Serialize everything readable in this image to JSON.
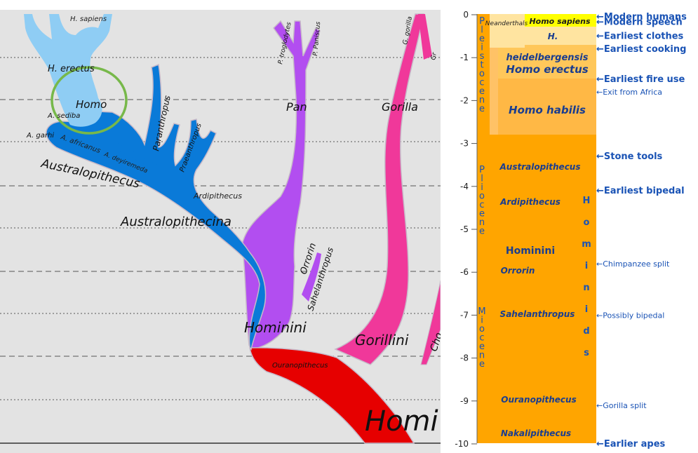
{
  "tree": {
    "colors": {
      "background": "#e3e3e3",
      "hominina": "#0a7ad8",
      "homo": "#8fcdf4",
      "pan": "#b24ef0",
      "gorilla": "#f0389a",
      "hominini_base": "#e60000",
      "highlight_circle": "#77b84a"
    },
    "labels": {
      "h_sapiens": "H. sapiens",
      "h_erectus": "H. erectus",
      "homo": "Homo",
      "a_sediba": "A. sediba",
      "a_garhi": "A. garhi",
      "a_africanus": "A. africanus",
      "australopithecus": "Australopithecus",
      "paranthropus": "Paranthropus",
      "praeanthropus": "Praeanthropus",
      "a_deyiremeda": "A. deyiremeda",
      "ardipithecus": "Ardipithecus",
      "australopithecina": "Australopithecina",
      "p_troglodytes": "P. troglodytes",
      "p_paniscus": "P. Paniscus",
      "pan": "Pan",
      "g_gorilla": "G. gorilla",
      "gorilla": "Gorilla",
      "orrorin": "Orrorin",
      "sahelanthropus": "Sahelanthropus",
      "hominini": "Hominini",
      "gorillini": "Gorillini",
      "ouranopithecus": "Ouranopithecus",
      "homi": "Homi",
      "cho": "Cho",
      "gr": "Gr"
    }
  },
  "timeline": {
    "axis_ticks": [
      "0",
      "-1",
      "-2",
      "-3",
      "-4",
      "-5",
      "-6",
      "-7",
      "-8",
      "-9",
      "-10"
    ],
    "epochs": {
      "pleistocene": "Pleistocene",
      "pliocene": "Pliocene",
      "miocene": "Miocene"
    },
    "taxa": {
      "homo_sapiens": "Homo sapiens",
      "neanderthals": "Neanderthals",
      "h": "H.",
      "heidelbergensis": "heidelbergensis",
      "homo_erectus": "Homo erectus",
      "homo_habilis": "Homo habilis",
      "australopithecus": "Australopithecus",
      "ardipithecus": "Ardipithecus",
      "hominini": "Hominini",
      "orrorin": "Orrorin",
      "sahelanthropus": "Sahelanthropus",
      "ouranopithecus": "Ouranopithecus",
      "nakalipithecus": "Nakalipithecus",
      "hominids": "Hominids"
    },
    "events": [
      {
        "name": "modern_humans",
        "label": "Modern humans",
        "time_mya": 0.05,
        "bold": true
      },
      {
        "name": "modern_speech",
        "label": "Modern speech",
        "time_mya": 0.17,
        "bold": true
      },
      {
        "name": "earliest_clothes",
        "label": "Earliest clothes",
        "time_mya": 0.5,
        "bold": true
      },
      {
        "name": "earliest_cooking",
        "label": "Earliest cooking",
        "time_mya": 0.8,
        "bold": true
      },
      {
        "name": "earliest_fire_use",
        "label": "Earliest fire use",
        "time_mya": 1.5,
        "bold": true
      },
      {
        "name": "exit_from_africa",
        "label": "Exit from Africa",
        "time_mya": 1.8,
        "bold": false
      },
      {
        "name": "stone_tools",
        "label": "Stone tools",
        "time_mya": 3.3,
        "bold": true
      },
      {
        "name": "earliest_bipedal",
        "label": "Earliest bipedal",
        "time_mya": 4.1,
        "bold": true
      },
      {
        "name": "chimpanzee_split",
        "label": "Chimpanzee split",
        "time_mya": 5.8,
        "bold": false
      },
      {
        "name": "possibly_bipedal",
        "label": "Possibly bipedal",
        "time_mya": 7.0,
        "bold": false
      },
      {
        "name": "gorilla_split",
        "label": "Gorilla split",
        "time_mya": 9.1,
        "bold": false
      },
      {
        "name": "earlier_apes",
        "label": "Earlier apes",
        "time_mya": 10.0,
        "bold": true
      }
    ],
    "colors": {
      "orange": "#ffa500",
      "light_orange": "#ffc266",
      "pale": "#ffe4a0",
      "yellow": "#ffff00",
      "epoch_text": "#1a53b5",
      "event_text": "#1a53b5",
      "taxa_text": "#1a3d8f"
    }
  }
}
